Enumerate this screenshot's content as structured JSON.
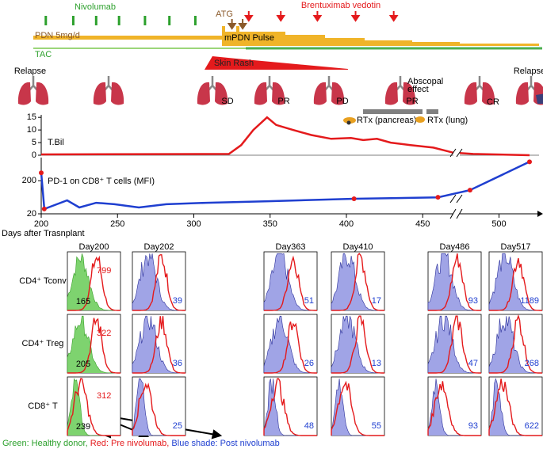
{
  "timeline": {
    "nivolumab": "Nivolumab",
    "nivolumab_days": [
      203,
      221,
      236,
      251,
      268,
      284,
      301
    ],
    "atg": "ATG",
    "atg_days": [
      325,
      332
    ],
    "brentuximab": "Brentuximab vedotin",
    "brentuximab_days": [
      336,
      357,
      381,
      406,
      431
    ],
    "pdn": "PDN 5mg/d",
    "mpdn": "mPDN Pulse",
    "tac": "TAC",
    "skin_rash": "Skin Rash",
    "skin_rash_days": [
      307,
      401
    ]
  },
  "imaging": [
    "Relapse",
    "SD",
    "PR",
    "PD",
    "Abscopal",
    "effect",
    "PR",
    "CR",
    "Relapse"
  ],
  "rtx": [
    "RTx (pancreas)",
    "RTx (lung)"
  ],
  "chart_data": [
    {
      "type": "line",
      "title": "T.Bil",
      "xlim": [
        200,
        520
      ],
      "ylim": [
        0,
        16
      ],
      "yticks": [
        0,
        5,
        10,
        15
      ],
      "series": [
        {
          "color": "#e41a1c",
          "x": [
            200,
            323,
            331,
            339,
            348,
            354,
            365,
            377,
            390,
            403,
            411,
            420,
            429,
            442,
            457,
            470,
            483,
            520
          ],
          "values": [
            0.3,
            0.5,
            4,
            10,
            15,
            12,
            10,
            8,
            6.5,
            6.8,
            6,
            6.5,
            5,
            4,
            3,
            1,
            0.5,
            0
          ]
        }
      ]
    },
    {
      "type": "line",
      "title": "PD-1 on CD8⁺ T cells (MFI)",
      "log_scale": true,
      "xlim": [
        200,
        520
      ],
      "ylim": [
        20,
        1000
      ],
      "yticks": [
        20,
        200
      ],
      "xticks": [
        200,
        250,
        300,
        350,
        400,
        450,
        500
      ],
      "xlabel": "Days after Trasnplant",
      "series": [
        {
          "color": "#1f3fd0",
          "x": [
            200,
            202,
            217,
            225,
            236,
            248,
            264,
            282,
            308,
            349,
            405,
            460,
            481,
            520
          ],
          "values": [
            346,
            28,
            51,
            31,
            43,
            39,
            31,
            39,
            43,
            48,
            57,
            63,
            104,
            745
          ]
        },
        {
          "color": "#e41a1c",
          "style": "points",
          "x": [
            200,
            202,
            405,
            460,
            481,
            520
          ],
          "values": [
            346,
            28,
            57,
            63,
            104,
            745
          ]
        }
      ]
    }
  ],
  "flow": {
    "days": [
      "Day200",
      "Day202",
      "Day363",
      "Day410",
      "Day486",
      "Day517"
    ],
    "rows": [
      {
        "label": "CD4⁺ Tconv",
        "healthy_donor": 165,
        "values": [
          799,
          39,
          51,
          17,
          93,
          1189
        ]
      },
      {
        "label": "CD4⁺ Treg",
        "healthy_donor": 205,
        "values": [
          322,
          36,
          26,
          13,
          47,
          268
        ]
      },
      {
        "label": "CD8⁺ T",
        "healthy_donor": 239,
        "values": [
          312,
          25,
          48,
          55,
          93,
          622
        ]
      }
    ]
  },
  "legend": [
    "Green: Healthy donor,",
    "Red: Pre nivolumab,",
    "Blue shade: Post nivolumab"
  ]
}
